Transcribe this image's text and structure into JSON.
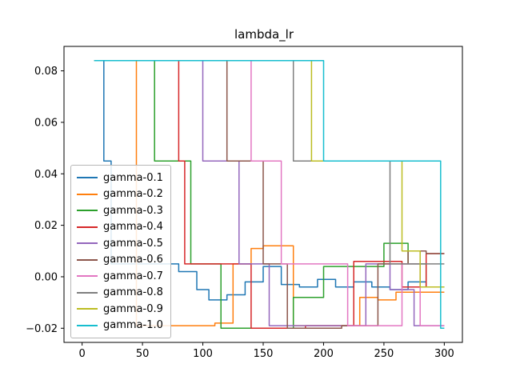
{
  "chart_data": {
    "type": "line",
    "title": "lambda_lr",
    "xlabel": "",
    "ylabel": "",
    "xlim": [
      -15,
      315
    ],
    "ylim": [
      -0.0255,
      0.0895
    ],
    "xticks": [
      0,
      50,
      100,
      150,
      200,
      250,
      300
    ],
    "yticks": [
      -0.02,
      0.0,
      0.02,
      0.04,
      0.06,
      0.08
    ],
    "grid": false,
    "legend_position": "center-left",
    "series": [
      {
        "name": "gamma-0.1",
        "color": "#1f77b4",
        "points": [
          [
            10,
            0.084
          ],
          [
            18,
            0.084
          ],
          [
            18,
            0.045
          ],
          [
            24,
            0.045
          ],
          [
            24,
            0.005
          ],
          [
            80,
            0.005
          ],
          [
            80,
            0.002
          ],
          [
            95,
            0.002
          ],
          [
            95,
            -0.005
          ],
          [
            105,
            -0.005
          ],
          [
            105,
            -0.009
          ],
          [
            120,
            -0.009
          ],
          [
            120,
            -0.007
          ],
          [
            135,
            -0.007
          ],
          [
            135,
            -0.002
          ],
          [
            150,
            -0.002
          ],
          [
            150,
            0.004
          ],
          [
            165,
            0.004
          ],
          [
            165,
            -0.003
          ],
          [
            180,
            -0.003
          ],
          [
            180,
            -0.004
          ],
          [
            195,
            -0.004
          ],
          [
            195,
            -0.001
          ],
          [
            210,
            -0.001
          ],
          [
            210,
            -0.004
          ],
          [
            225,
            -0.004
          ],
          [
            225,
            -0.002
          ],
          [
            240,
            -0.002
          ],
          [
            240,
            -0.004
          ],
          [
            255,
            -0.004
          ],
          [
            255,
            -0.005
          ],
          [
            270,
            -0.005
          ],
          [
            270,
            -0.002
          ],
          [
            285,
            -0.002
          ],
          [
            285,
            -0.004
          ],
          [
            300,
            -0.004
          ]
        ]
      },
      {
        "name": "gamma-0.2",
        "color": "#ff7f0e",
        "points": [
          [
            10,
            0.084
          ],
          [
            45,
            0.084
          ],
          [
            45,
            -0.019
          ],
          [
            110,
            -0.019
          ],
          [
            110,
            -0.018
          ],
          [
            125,
            -0.018
          ],
          [
            125,
            0.005
          ],
          [
            140,
            0.005
          ],
          [
            140,
            0.011
          ],
          [
            150,
            0.011
          ],
          [
            150,
            0.012
          ],
          [
            175,
            0.012
          ],
          [
            175,
            -0.019
          ],
          [
            230,
            -0.019
          ],
          [
            230,
            -0.008
          ],
          [
            245,
            -0.008
          ],
          [
            245,
            -0.009
          ],
          [
            260,
            -0.009
          ],
          [
            260,
            -0.006
          ],
          [
            300,
            -0.006
          ]
        ]
      },
      {
        "name": "gamma-0.3",
        "color": "#2ca02c",
        "points": [
          [
            10,
            0.084
          ],
          [
            60,
            0.084
          ],
          [
            60,
            0.045
          ],
          [
            90,
            0.045
          ],
          [
            90,
            0.005
          ],
          [
            115,
            0.005
          ],
          [
            115,
            -0.02
          ],
          [
            175,
            -0.02
          ],
          [
            175,
            -0.008
          ],
          [
            200,
            -0.008
          ],
          [
            200,
            0.004
          ],
          [
            250,
            0.004
          ],
          [
            250,
            0.013
          ],
          [
            270,
            0.013
          ],
          [
            270,
            0.005
          ],
          [
            285,
            0.005
          ],
          [
            285,
            -0.004
          ],
          [
            300,
            -0.004
          ]
        ]
      },
      {
        "name": "gamma-0.4",
        "color": "#d62728",
        "points": [
          [
            10,
            0.084
          ],
          [
            80,
            0.084
          ],
          [
            80,
            0.045
          ],
          [
            85,
            0.045
          ],
          [
            85,
            0.005
          ],
          [
            140,
            0.005
          ],
          [
            140,
            -0.02
          ],
          [
            185,
            -0.02
          ],
          [
            185,
            -0.019
          ],
          [
            225,
            -0.019
          ],
          [
            225,
            0.006
          ],
          [
            265,
            0.006
          ],
          [
            265,
            -0.004
          ],
          [
            285,
            -0.004
          ],
          [
            285,
            0.009
          ],
          [
            300,
            0.009
          ]
        ]
      },
      {
        "name": "gamma-0.5",
        "color": "#9467bd",
        "points": [
          [
            10,
            0.084
          ],
          [
            100,
            0.084
          ],
          [
            100,
            0.045
          ],
          [
            130,
            0.045
          ],
          [
            130,
            0.005
          ],
          [
            155,
            0.005
          ],
          [
            155,
            -0.019
          ],
          [
            235,
            -0.019
          ],
          [
            235,
            0.005
          ],
          [
            255,
            0.005
          ],
          [
            255,
            -0.005
          ],
          [
            275,
            -0.005
          ],
          [
            275,
            -0.019
          ],
          [
            300,
            -0.019
          ]
        ]
      },
      {
        "name": "gamma-0.6",
        "color": "#8c564b",
        "points": [
          [
            10,
            0.084
          ],
          [
            120,
            0.084
          ],
          [
            120,
            0.045
          ],
          [
            150,
            0.045
          ],
          [
            150,
            0.005
          ],
          [
            170,
            0.005
          ],
          [
            170,
            -0.02
          ],
          [
            215,
            -0.02
          ],
          [
            215,
            -0.019
          ],
          [
            245,
            -0.019
          ],
          [
            245,
            0.005
          ],
          [
            270,
            0.005
          ],
          [
            270,
            0.01
          ],
          [
            285,
            0.01
          ],
          [
            285,
            0.009
          ],
          [
            300,
            0.009
          ]
        ]
      },
      {
        "name": "gamma-0.7",
        "color": "#e377c2",
        "points": [
          [
            10,
            0.084
          ],
          [
            140,
            0.084
          ],
          [
            140,
            0.045
          ],
          [
            165,
            0.045
          ],
          [
            165,
            0.005
          ],
          [
            220,
            0.005
          ],
          [
            220,
            -0.019
          ],
          [
            265,
            -0.019
          ],
          [
            265,
            0.005
          ],
          [
            280,
            0.005
          ],
          [
            280,
            -0.019
          ],
          [
            300,
            -0.019
          ]
        ]
      },
      {
        "name": "gamma-0.8",
        "color": "#7f7f7f",
        "points": [
          [
            10,
            0.084
          ],
          [
            175,
            0.084
          ],
          [
            175,
            0.045
          ],
          [
            255,
            0.045
          ],
          [
            255,
            0.005
          ],
          [
            300,
            0.005
          ]
        ]
      },
      {
        "name": "gamma-0.9",
        "color": "#bcbd22",
        "points": [
          [
            10,
            0.084
          ],
          [
            190,
            0.084
          ],
          [
            190,
            0.045
          ],
          [
            265,
            0.045
          ],
          [
            265,
            0.01
          ],
          [
            280,
            0.01
          ],
          [
            280,
            -0.004
          ],
          [
            300,
            -0.004
          ]
        ]
      },
      {
        "name": "gamma-1.0",
        "color": "#17becf",
        "points": [
          [
            10,
            0.084
          ],
          [
            200,
            0.084
          ],
          [
            200,
            0.045
          ],
          [
            297,
            0.045
          ],
          [
            297,
            -0.02
          ],
          [
            300,
            -0.02
          ]
        ]
      }
    ]
  }
}
